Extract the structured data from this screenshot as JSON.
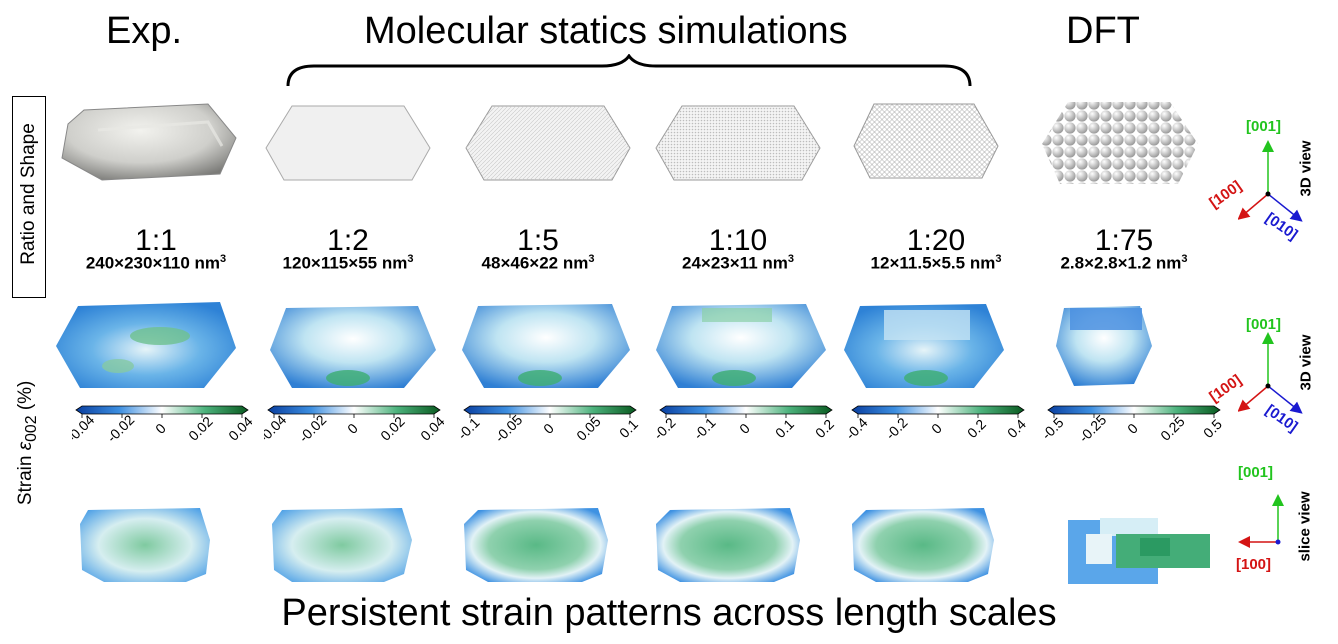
{
  "headers": {
    "exp": "Exp.",
    "md": "Molecular statics simulations",
    "dft": "DFT"
  },
  "row_labels": {
    "shape": "Ratio and Shape",
    "strain_prefix": "Strain ",
    "strain_symbol": "ε",
    "strain_sub": "002",
    "strain_unit": " (%)"
  },
  "columns": [
    {
      "ratio": "1:1",
      "volume": "240×230×110 nm",
      "exp": "3",
      "ticks": [
        "-0.04",
        "-0.02",
        "0",
        "0.02",
        "0.04"
      ]
    },
    {
      "ratio": "1:2",
      "volume": "120×115×55 nm",
      "exp": "3",
      "ticks": [
        "-0.04",
        "-0.02",
        "0",
        "0.02",
        "0.04"
      ]
    },
    {
      "ratio": "1:5",
      "volume": "48×46×22 nm",
      "exp": "3",
      "ticks": [
        "-0.1",
        "-0.05",
        "0",
        "0.05",
        "0.1"
      ]
    },
    {
      "ratio": "1:10",
      "volume": "24×23×11 nm",
      "exp": "3",
      "ticks": [
        "-0.2",
        "-0.1",
        "0",
        "0.1",
        "0.2"
      ]
    },
    {
      "ratio": "1:20",
      "volume": "12×11.5×5.5 nm",
      "exp": "3",
      "ticks": [
        "-0.4",
        "-0.2",
        "0",
        "0.2",
        "0.4"
      ]
    },
    {
      "ratio": "1:75",
      "volume": "2.8×2.8×1.2 nm",
      "exp": "3",
      "ticks": [
        "-0.5",
        "-0.25",
        "0",
        "0.25",
        "0.5"
      ]
    }
  ],
  "axes": {
    "z": "[001]",
    "x": "[100]",
    "y": "[010]",
    "view_3d": "3D view",
    "view_slice": "slice view"
  },
  "colors": {
    "z_axis": "#22c41e",
    "x_axis": "#d41414",
    "y_axis": "#1a1ad0",
    "strain_neg": "#0a3fa0",
    "strain_zero": "#ffffff",
    "strain_pos": "#0a5a20"
  },
  "footer": "Persistent strain patterns across length scales"
}
